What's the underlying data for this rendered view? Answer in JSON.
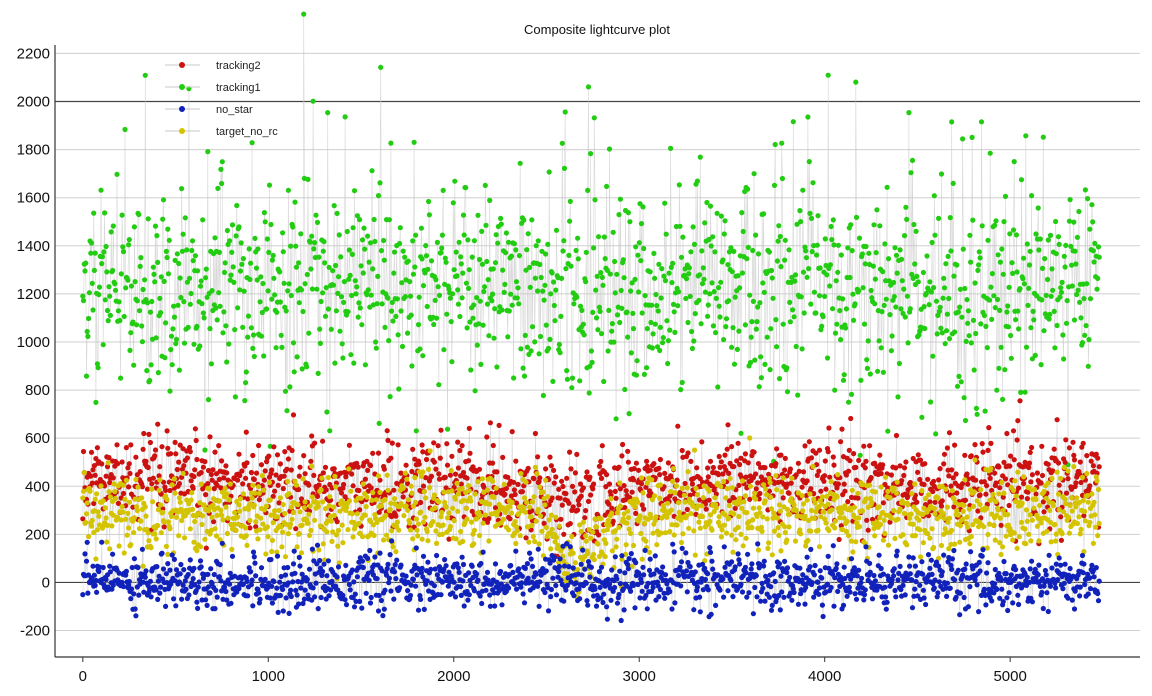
{
  "chart_data": {
    "type": "scatter",
    "title": "Composite lightcurve plot",
    "xlabel": "",
    "ylabel": "",
    "xlim": [
      -150,
      5700
    ],
    "ylim": [
      -310,
      2235
    ],
    "x_ticks": [
      "0",
      "1000",
      "2000",
      "3000",
      "4000",
      "5000"
    ],
    "y_ticks": [
      "-200",
      "0",
      "200",
      "400",
      "600",
      "800",
      "1000",
      "1200",
      "1400",
      "1600",
      "1800",
      "2000",
      "2200"
    ],
    "grid": true,
    "legend_position": "top-left",
    "x_range": [
      0,
      5480
    ],
    "series": [
      {
        "name": "tracking2",
        "color": "#cc1111",
        "mean": 390,
        "spread": 90,
        "x_sample": [
          0,
          500,
          1000,
          1500,
          2000,
          2500,
          2600,
          3000,
          3500,
          4000,
          4500,
          5000,
          5470
        ],
        "y_sample": [
          430,
          410,
          420,
          400,
          420,
          390,
          300,
          410,
          430,
          420,
          400,
          410,
          420
        ]
      },
      {
        "name": "tracking1",
        "color": "#22cc11",
        "mean": 1220,
        "spread": 190,
        "x_sample": [
          0,
          500,
          1000,
          1500,
          2000,
          2500,
          3000,
          3500,
          4000,
          4500,
          5000,
          5470
        ],
        "y_sample": [
          1250,
          1230,
          1210,
          1230,
          1220,
          1180,
          1210,
          1220,
          1200,
          1180,
          1190,
          1230
        ]
      },
      {
        "name": "no_star",
        "color": "#1122bb",
        "mean": 10,
        "spread": 55,
        "x_sample": [
          0,
          500,
          1000,
          1500,
          2000,
          2500,
          3000,
          3500,
          4000,
          4500,
          5000,
          5470
        ],
        "y_sample": [
          20,
          10,
          0,
          10,
          0,
          10,
          0,
          10,
          0,
          10,
          0,
          10
        ]
      },
      {
        "name": "target_no_rc",
        "color": "#d4c400",
        "mean": 290,
        "spread": 80,
        "x_sample": [
          0,
          500,
          1000,
          1500,
          2000,
          2500,
          2600,
          3000,
          3500,
          4000,
          4500,
          5000,
          5470
        ],
        "y_sample": [
          300,
          290,
          280,
          290,
          280,
          290,
          50,
          290,
          300,
          290,
          280,
          290,
          300
        ]
      }
    ]
  }
}
